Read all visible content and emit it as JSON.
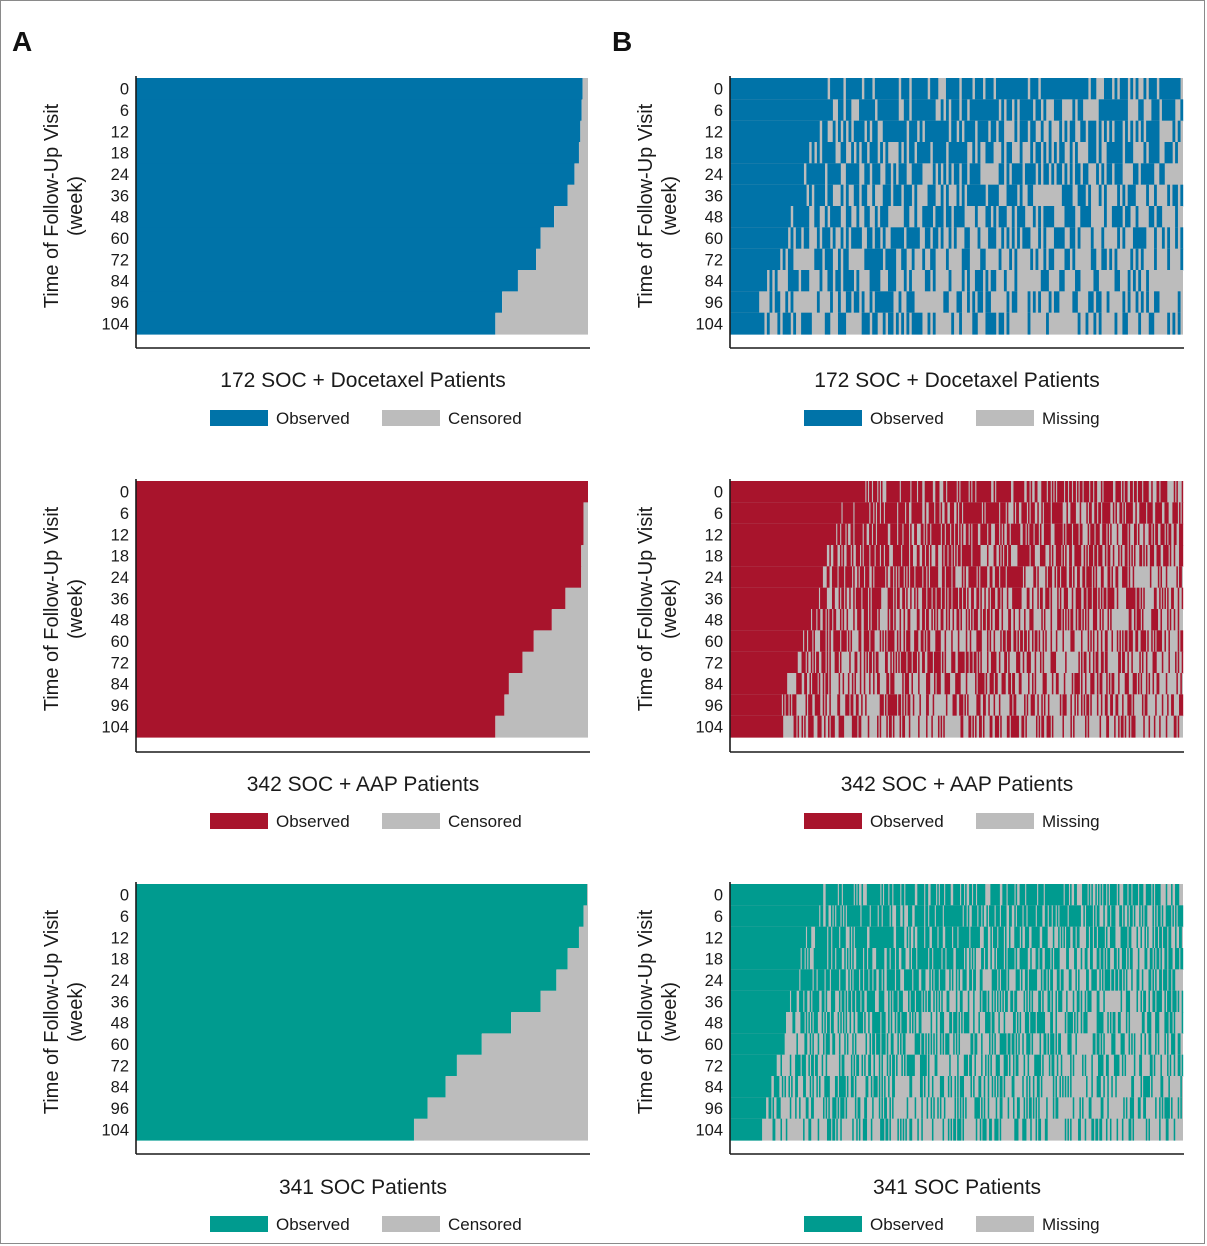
{
  "panel_labels": [
    "A",
    "B"
  ],
  "colors": {
    "censored": "#bcbcbc",
    "missing": "#bcbcbc",
    "axis": "#1a1a1a",
    "docetaxel": "#0073a8",
    "aap": "#a8142c",
    "soc": "#009b8f"
  },
  "chart_data": [
    {
      "type": "heatmap",
      "panel": "A",
      "title": "172 SOC + Docetaxel Patients",
      "ylabel": "Time of Follow-Up Visit (week)",
      "weeks": [
        "0",
        "6",
        "12",
        "18",
        "24",
        "36",
        "48",
        "60",
        "72",
        "84",
        "96",
        "104"
      ],
      "n_patients": 172,
      "legend": [
        "Observed",
        "Censored"
      ],
      "color_key": "docetaxel",
      "observed_fraction": [
        0.988,
        0.986,
        0.983,
        0.98,
        0.97,
        0.955,
        0.925,
        0.895,
        0.885,
        0.845,
        0.81,
        0.795
      ]
    },
    {
      "type": "heatmap",
      "panel": "B",
      "title": "172 SOC + Docetaxel Patients",
      "ylabel": "Time of Follow-Up Visit (week)",
      "weeks": [
        "0",
        "6",
        "12",
        "18",
        "24",
        "36",
        "48",
        "60",
        "72",
        "84",
        "96",
        "104"
      ],
      "n_patients": 172,
      "legend": [
        "Observed",
        "Missing"
      ],
      "color_key": "docetaxel",
      "full_observed_fraction": [
        0.19,
        0.18,
        0.17,
        0.165,
        0.16,
        0.14,
        0.12,
        0.11,
        0.1,
        0.08,
        0.06,
        0.075
      ],
      "observed_density": [
        0.88,
        0.82,
        0.75,
        0.7,
        0.66,
        0.62,
        0.58,
        0.55,
        0.52,
        0.47,
        0.43,
        0.42
      ]
    },
    {
      "type": "heatmap",
      "panel": "A",
      "title": "342 SOC + AAP Patients",
      "ylabel": "Time of Follow-Up Visit (week)",
      "weeks": [
        "0",
        "6",
        "12",
        "18",
        "24",
        "36",
        "48",
        "60",
        "72",
        "84",
        "96",
        "104"
      ],
      "n_patients": 342,
      "legend": [
        "Observed",
        "Censored"
      ],
      "color_key": "aap",
      "observed_fraction": [
        1.0,
        0.99,
        0.99,
        0.985,
        0.985,
        0.95,
        0.92,
        0.88,
        0.855,
        0.825,
        0.815,
        0.795
      ]
    },
    {
      "type": "heatmap",
      "panel": "B",
      "title": "342 SOC + AAP Patients",
      "ylabel": "Time of Follow-Up Visit (week)",
      "weeks": [
        "0",
        "6",
        "12",
        "18",
        "24",
        "36",
        "48",
        "60",
        "72",
        "84",
        "96",
        "104"
      ],
      "n_patients": 342,
      "legend": [
        "Observed",
        "Missing"
      ],
      "color_key": "aap",
      "full_observed_fraction": [
        0.27,
        0.24,
        0.22,
        0.21,
        0.2,
        0.19,
        0.175,
        0.16,
        0.14,
        0.12,
        0.11,
        0.11
      ],
      "observed_density": [
        0.86,
        0.8,
        0.74,
        0.69,
        0.65,
        0.61,
        0.57,
        0.53,
        0.5,
        0.47,
        0.44,
        0.42
      ]
    },
    {
      "type": "heatmap",
      "panel": "A",
      "title": "341 SOC Patients",
      "ylabel": "Time of Follow-Up Visit (week)",
      "weeks": [
        "0",
        "6",
        "12",
        "18",
        "24",
        "36",
        "48",
        "60",
        "72",
        "84",
        "96",
        "104"
      ],
      "n_patients": 341,
      "legend": [
        "Observed",
        "Censored"
      ],
      "color_key": "soc",
      "observed_fraction": [
        0.998,
        0.99,
        0.98,
        0.955,
        0.93,
        0.895,
        0.83,
        0.765,
        0.71,
        0.685,
        0.645,
        0.615
      ]
    },
    {
      "type": "heatmap",
      "panel": "B",
      "title": "341 SOC Patients",
      "ylabel": "Time of Follow-Up Visit (week)",
      "weeks": [
        "0",
        "6",
        "12",
        "18",
        "24",
        "36",
        "48",
        "60",
        "72",
        "84",
        "96",
        "104"
      ],
      "n_patients": 341,
      "legend": [
        "Observed",
        "Missing"
      ],
      "color_key": "soc",
      "full_observed_fraction": [
        0.19,
        0.17,
        0.16,
        0.15,
        0.14,
        0.13,
        0.12,
        0.11,
        0.1,
        0.09,
        0.075,
        0.07
      ],
      "observed_density": [
        0.85,
        0.78,
        0.72,
        0.67,
        0.62,
        0.58,
        0.54,
        0.5,
        0.47,
        0.44,
        0.41,
        0.4
      ]
    }
  ]
}
